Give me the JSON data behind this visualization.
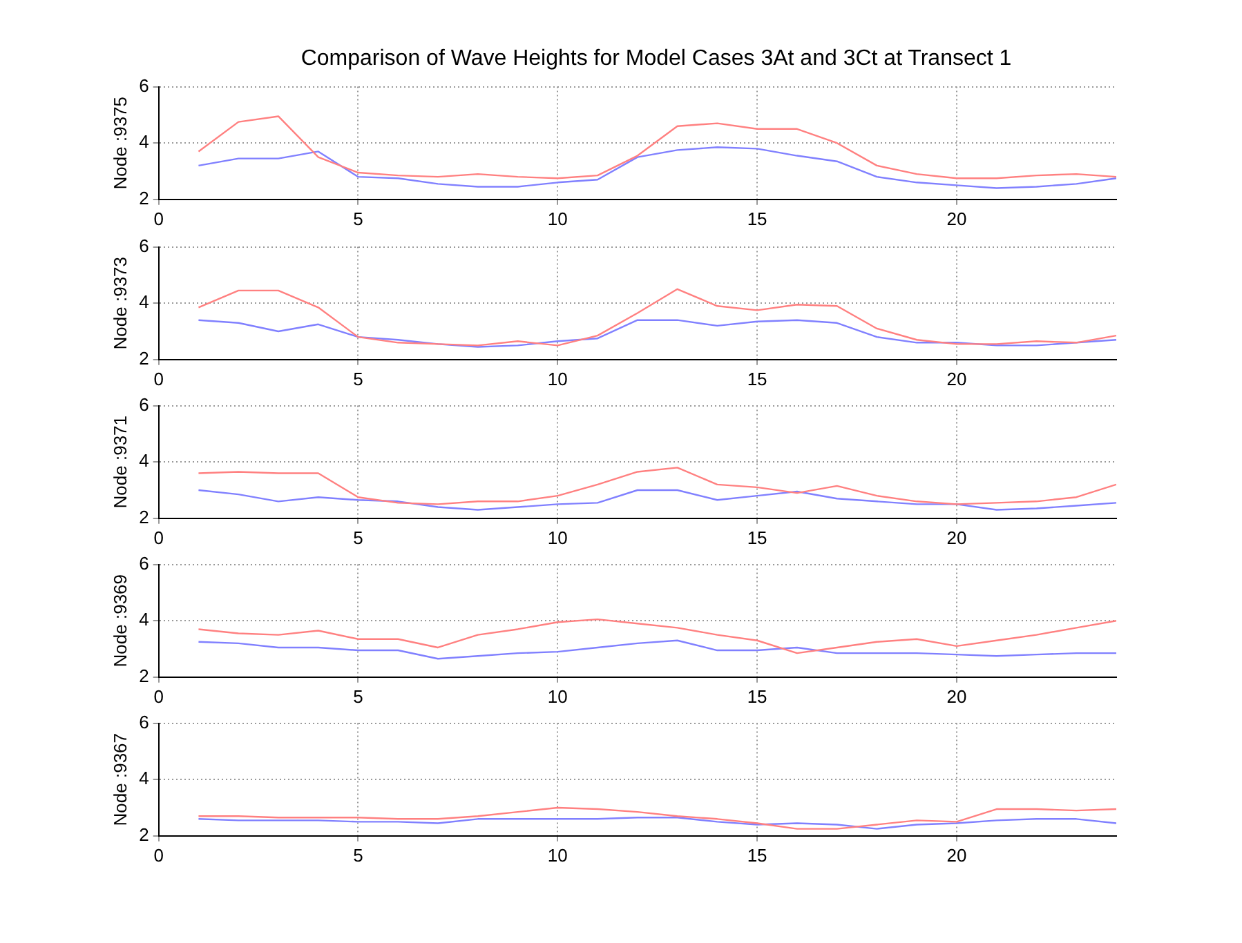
{
  "chart_data": [
    {
      "type": "line",
      "title": "Comparison of Wave Heights for Model Cases 3At and 3Ct at Transect 1",
      "ylabel": "Node :9375",
      "x": [
        1,
        2,
        3,
        4,
        5,
        6,
        7,
        8,
        9,
        10,
        11,
        12,
        13,
        14,
        15,
        16,
        17,
        18,
        19,
        20,
        21,
        22,
        23,
        24
      ],
      "xlim": [
        0,
        24
      ],
      "xticks": [
        0,
        5,
        10,
        15,
        20
      ],
      "ylim": [
        2,
        6
      ],
      "yticks": [
        2,
        4,
        6
      ],
      "grid": true,
      "legend": false,
      "marker": "none",
      "line_style": "solid",
      "series": [
        {
          "color": "#ff8080",
          "values": [
            3.7,
            4.75,
            4.95,
            3.5,
            2.95,
            2.85,
            2.8,
            2.9,
            2.8,
            2.75,
            2.85,
            3.55,
            4.6,
            4.7,
            4.5,
            4.5,
            4.0,
            3.2,
            2.9,
            2.75,
            2.75,
            2.85,
            2.9,
            2.8
          ]
        },
        {
          "color": "#8080ff",
          "values": [
            3.2,
            3.45,
            3.45,
            3.7,
            2.8,
            2.75,
            2.55,
            2.45,
            2.45,
            2.6,
            2.7,
            3.5,
            3.75,
            3.85,
            3.8,
            3.55,
            3.35,
            2.8,
            2.6,
            2.5,
            2.4,
            2.45,
            2.55,
            2.75
          ]
        }
      ]
    },
    {
      "type": "line",
      "ylabel": "Node :9373",
      "x": [
        1,
        2,
        3,
        4,
        5,
        6,
        7,
        8,
        9,
        10,
        11,
        12,
        13,
        14,
        15,
        16,
        17,
        18,
        19,
        20,
        21,
        22,
        23,
        24
      ],
      "xlim": [
        0,
        24
      ],
      "xticks": [
        0,
        5,
        10,
        15,
        20
      ],
      "ylim": [
        2,
        6
      ],
      "yticks": [
        2,
        4,
        6
      ],
      "grid": true,
      "legend": false,
      "marker": "none",
      "line_style": "solid",
      "series": [
        {
          "color": "#ff8080",
          "values": [
            3.85,
            4.45,
            4.45,
            3.85,
            2.8,
            2.6,
            2.55,
            2.5,
            2.65,
            2.5,
            2.85,
            3.65,
            4.5,
            3.9,
            3.75,
            3.95,
            3.9,
            3.1,
            2.7,
            2.55,
            2.55,
            2.65,
            2.6,
            2.85
          ]
        },
        {
          "color": "#8080ff",
          "values": [
            3.4,
            3.3,
            3.0,
            3.25,
            2.8,
            2.7,
            2.55,
            2.45,
            2.5,
            2.65,
            2.75,
            3.4,
            3.4,
            3.2,
            3.35,
            3.4,
            3.3,
            2.8,
            2.6,
            2.6,
            2.5,
            2.5,
            2.6,
            2.7
          ]
        }
      ]
    },
    {
      "type": "line",
      "ylabel": "Node :9371",
      "x": [
        1,
        2,
        3,
        4,
        5,
        6,
        7,
        8,
        9,
        10,
        11,
        12,
        13,
        14,
        15,
        16,
        17,
        18,
        19,
        20,
        21,
        22,
        23,
        24
      ],
      "xlim": [
        0,
        24
      ],
      "xticks": [
        0,
        5,
        10,
        15,
        20
      ],
      "ylim": [
        2,
        6
      ],
      "yticks": [
        2,
        4,
        6
      ],
      "grid": true,
      "legend": false,
      "marker": "none",
      "line_style": "solid",
      "series": [
        {
          "color": "#ff8080",
          "values": [
            3.6,
            3.65,
            3.6,
            3.6,
            2.75,
            2.55,
            2.5,
            2.6,
            2.6,
            2.8,
            3.2,
            3.65,
            3.8,
            3.2,
            3.1,
            2.9,
            3.15,
            2.8,
            2.6,
            2.5,
            2.55,
            2.6,
            2.75,
            3.2
          ]
        },
        {
          "color": "#8080ff",
          "values": [
            3.0,
            2.85,
            2.6,
            2.75,
            2.65,
            2.6,
            2.4,
            2.3,
            2.4,
            2.5,
            2.55,
            3.0,
            3.0,
            2.65,
            2.8,
            2.95,
            2.7,
            2.6,
            2.5,
            2.5,
            2.3,
            2.35,
            2.45,
            2.55
          ]
        }
      ]
    },
    {
      "type": "line",
      "ylabel": "Node :9369",
      "x": [
        1,
        2,
        3,
        4,
        5,
        6,
        7,
        8,
        9,
        10,
        11,
        12,
        13,
        14,
        15,
        16,
        17,
        18,
        19,
        20,
        21,
        22,
        23,
        24
      ],
      "xlim": [
        0,
        24
      ],
      "xticks": [
        0,
        5,
        10,
        15,
        20
      ],
      "ylim": [
        2,
        6
      ],
      "yticks": [
        2,
        4,
        6
      ],
      "grid": true,
      "legend": false,
      "marker": "none",
      "line_style": "solid",
      "series": [
        {
          "color": "#ff8080",
          "values": [
            3.7,
            3.55,
            3.5,
            3.65,
            3.35,
            3.35,
            3.05,
            3.5,
            3.7,
            3.95,
            4.05,
            3.9,
            3.75,
            3.5,
            3.3,
            2.85,
            3.05,
            3.25,
            3.35,
            3.1,
            3.3,
            3.5,
            3.75,
            4.0
          ]
        },
        {
          "color": "#8080ff",
          "values": [
            3.25,
            3.2,
            3.05,
            3.05,
            2.95,
            2.95,
            2.65,
            2.75,
            2.85,
            2.9,
            3.05,
            3.2,
            3.3,
            2.95,
            2.95,
            3.05,
            2.85,
            2.85,
            2.85,
            2.8,
            2.75,
            2.8,
            2.85,
            2.85
          ]
        }
      ]
    },
    {
      "type": "line",
      "ylabel": "Node :9367",
      "x": [
        1,
        2,
        3,
        4,
        5,
        6,
        7,
        8,
        9,
        10,
        11,
        12,
        13,
        14,
        15,
        16,
        17,
        18,
        19,
        20,
        21,
        22,
        23,
        24
      ],
      "xlim": [
        0,
        24
      ],
      "xticks": [
        0,
        5,
        10,
        15,
        20
      ],
      "ylim": [
        2,
        6
      ],
      "yticks": [
        2,
        4,
        6
      ],
      "grid": true,
      "legend": false,
      "marker": "none",
      "line_style": "solid",
      "series": [
        {
          "color": "#ff8080",
          "values": [
            2.7,
            2.7,
            2.65,
            2.65,
            2.65,
            2.6,
            2.6,
            2.7,
            2.85,
            3.0,
            2.95,
            2.85,
            2.7,
            2.6,
            2.45,
            2.25,
            2.25,
            2.4,
            2.55,
            2.5,
            2.95,
            2.95,
            2.9,
            2.95
          ]
        },
        {
          "color": "#8080ff",
          "values": [
            2.6,
            2.55,
            2.55,
            2.55,
            2.5,
            2.5,
            2.45,
            2.6,
            2.6,
            2.6,
            2.6,
            2.65,
            2.65,
            2.5,
            2.4,
            2.45,
            2.4,
            2.25,
            2.4,
            2.45,
            2.55,
            2.6,
            2.6,
            2.45
          ]
        }
      ]
    }
  ]
}
